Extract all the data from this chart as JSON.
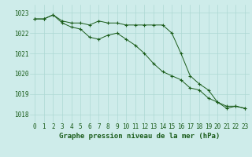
{
  "line1": [
    1022.7,
    1022.7,
    1022.9,
    1022.6,
    1022.5,
    1022.5,
    1022.4,
    1022.6,
    1022.5,
    1022.5,
    1022.4,
    1022.4,
    1022.4,
    1022.4,
    1022.4,
    1022.0,
    1021.0,
    1019.9,
    1019.5,
    1019.2,
    1018.6,
    1018.4,
    1018.4,
    1018.3
  ],
  "line2": [
    1022.7,
    1022.7,
    1022.9,
    1022.5,
    1022.3,
    1022.2,
    1021.8,
    1021.7,
    1021.9,
    1022.0,
    1021.7,
    1021.4,
    1021.0,
    1020.5,
    1020.1,
    1019.9,
    1019.7,
    1019.3,
    1019.2,
    1018.8,
    1018.6,
    1018.3,
    1018.4,
    1018.3
  ],
  "x": [
    0,
    1,
    2,
    3,
    4,
    5,
    6,
    7,
    8,
    9,
    10,
    11,
    12,
    13,
    14,
    15,
    16,
    17,
    18,
    19,
    20,
    21,
    22,
    23
  ],
  "ylim": [
    1017.6,
    1023.4
  ],
  "yticks": [
    1018,
    1019,
    1020,
    1021,
    1022,
    1023
  ],
  "bg_color": "#ceecea",
  "grid_color": "#aed8d4",
  "line_color": "#1a5c1a",
  "marker": "+",
  "xlabel": "Graphe pression niveau de la mer (hPa)",
  "xlabel_fontsize": 6.5,
  "tick_fontsize": 5.5,
  "figwidth": 3.2,
  "figheight": 2.0,
  "dpi": 100
}
